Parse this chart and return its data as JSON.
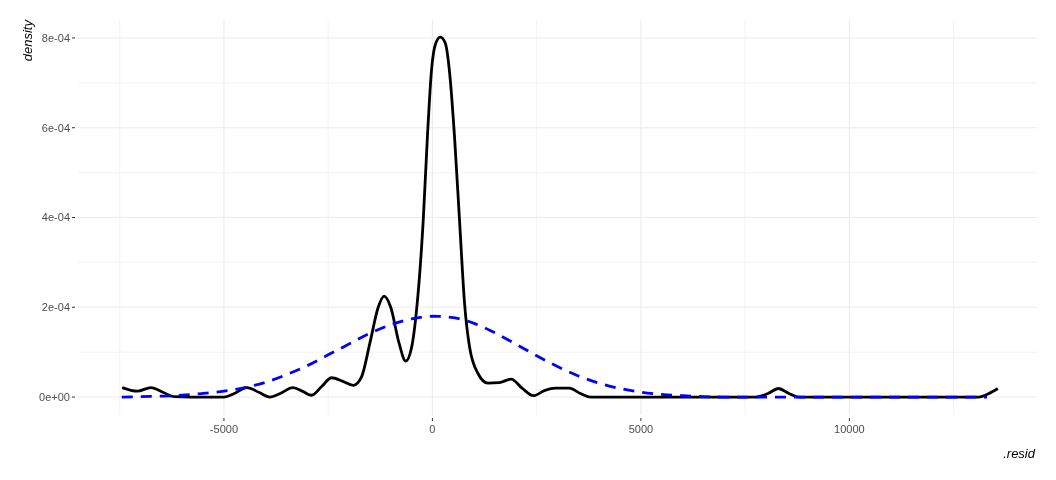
{
  "chart_data": {
    "type": "line",
    "xlabel": ".resid",
    "ylabel": "density",
    "xlim": [
      -8500,
      14500
    ],
    "ylim": [
      -4e-05,
      0.00084
    ],
    "xticks": [
      -5000,
      0,
      5000,
      10000
    ],
    "yticks": [
      {
        "value": 0,
        "label": "0e+00"
      },
      {
        "value": 0.0002,
        "label": "2e-04"
      },
      {
        "value": 0.0004,
        "label": "4e-04"
      },
      {
        "value": 0.0006,
        "label": "6e-04"
      },
      {
        "value": 0.0008,
        "label": "8e-04"
      }
    ],
    "grid": true,
    "series": [
      {
        "color": "#000000",
        "line_style": "solid",
        "x": [
          -7440,
          -7080,
          -6750,
          -6450,
          -6200,
          -5800,
          -5000,
          -4750,
          -4450,
          -4150,
          -3900,
          -3650,
          -3350,
          -3100,
          -2900,
          -2650,
          -2420,
          -2150,
          -1900,
          -1700,
          -1500,
          -1300,
          -1160,
          -1000,
          -800,
          -640,
          -500,
          -380,
          -220,
          -120,
          -20,
          80,
          190,
          310,
          415,
          530,
          650,
          770,
          890,
          1090,
          1330,
          1600,
          1890,
          2150,
          2420,
          2700,
          2950,
          3280,
          3550,
          3800,
          7750,
          8050,
          8300,
          8550,
          8800,
          13100,
          13350,
          13560
        ],
        "values": [
          2.1e-05,
          1.3e-05,
          2.1e-05,
          1e-05,
          1e-06,
          0,
          0,
          8e-06,
          2.1e-05,
          1e-05,
          0,
          8e-06,
          2.1e-05,
          1.2e-05,
          4e-06,
          2.4e-05,
          4.3e-05,
          3.5e-05,
          2.6e-05,
          4.5e-05,
          0.00012,
          0.0002,
          0.000225,
          0.0002,
          0.00012,
          8e-05,
          0.00011,
          0.000194,
          0.000394,
          0.00058,
          0.00073,
          0.000788,
          0.000802,
          0.000788,
          0.00072,
          0.00058,
          0.000394,
          0.00021,
          0.000112,
          5.3e-05,
          3.1e-05,
          3.2e-05,
          4e-05,
          2e-05,
          3e-06,
          1.5e-05,
          2e-05,
          2e-05,
          8e-06,
          0,
          0,
          8e-06,
          1.9e-05,
          8e-06,
          0,
          0,
          8e-06,
          1.9e-05
        ]
      },
      {
        "color": "#0000ff",
        "line_style": "dashed",
        "x": [
          -7450,
          -7000,
          -6500,
          -6000,
          -5500,
          -5000,
          -4500,
          -4000,
          -3500,
          -3000,
          -2500,
          -2000,
          -1500,
          -1000,
          -500,
          0,
          500,
          1000,
          1500,
          2000,
          2500,
          3000,
          3500,
          4000,
          4500,
          5000,
          5500,
          6000,
          6500,
          7000,
          8000,
          9000,
          10000,
          11000,
          12000,
          13300
        ],
        "values": [
          0,
          1e-06,
          2e-06,
          4e-06,
          8e-06,
          1.3e-05,
          2.1e-05,
          3.3e-05,
          5e-05,
          7e-05,
          9.4e-05,
          0.000118,
          0.000142,
          0.000161,
          0.000174,
          0.00018,
          0.000177,
          0.000164,
          0.000143,
          0.000118,
          9.2e-05,
          6.8e-05,
          4.7e-05,
          3.1e-05,
          1.9e-05,
          1.1e-05,
          6e-06,
          3e-06,
          1e-06,
          0,
          0,
          0,
          0,
          0,
          0,
          0
        ]
      }
    ]
  }
}
